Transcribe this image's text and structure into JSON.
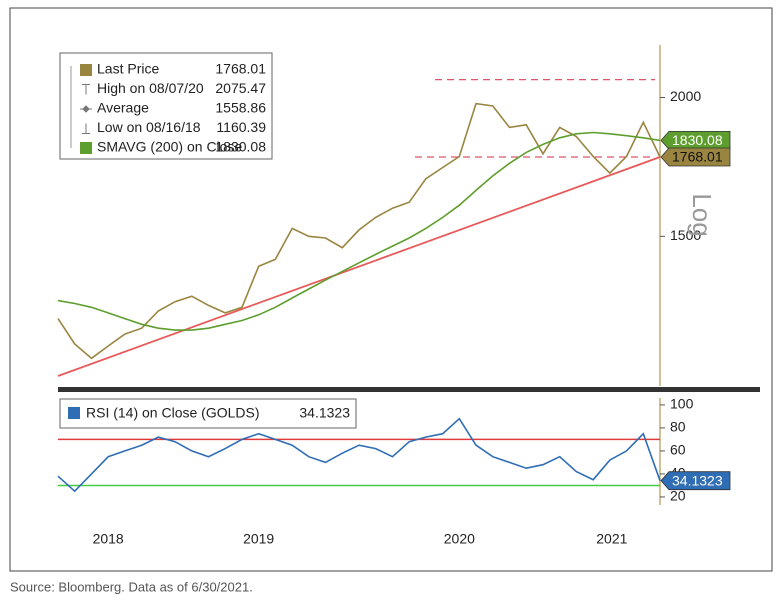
{
  "chart_data": [
    {
      "type": "line",
      "log_scale": true,
      "y_axis_label": "Log",
      "x": [
        2018.5,
        2018.583,
        2018.667,
        2018.75,
        2018.833,
        2018.917,
        2019.0,
        2019.083,
        2019.167,
        2019.25,
        2019.333,
        2019.417,
        2019.5,
        2019.583,
        2019.667,
        2019.75,
        2019.833,
        2019.917,
        2020.0,
        2020.083,
        2020.167,
        2020.25,
        2020.333,
        2020.417,
        2020.5,
        2020.583,
        2020.667,
        2020.75,
        2020.833,
        2020.917,
        2021.0,
        2021.083,
        2021.167,
        2021.25,
        2021.333,
        2021.417,
        2021.5
      ],
      "xlim": [
        2018.5,
        2021.5
      ],
      "ylim": [
        1100,
        2230
      ],
      "yticks": [
        1500,
        2000
      ],
      "series": [
        {
          "name": "Last Price",
          "color": "#9a8540",
          "values": [
            1265,
            1200,
            1165,
            1195,
            1225,
            1240,
            1285,
            1310,
            1325,
            1300,
            1280,
            1295,
            1410,
            1430,
            1525,
            1500,
            1495,
            1465,
            1520,
            1560,
            1590,
            1610,
            1690,
            1730,
            1770,
            1975,
            1965,
            1880,
            1890,
            1780,
            1880,
            1845,
            1770,
            1710,
            1770,
            1900,
            1768.01
          ]
        },
        {
          "name": "SMAVG (200)  on Close",
          "color": "#5e9e2e",
          "values": [
            1313,
            1305,
            1295,
            1280,
            1265,
            1250,
            1240,
            1235,
            1235,
            1240,
            1250,
            1260,
            1275,
            1295,
            1320,
            1345,
            1370,
            1395,
            1420,
            1445,
            1470,
            1495,
            1525,
            1560,
            1600,
            1650,
            1700,
            1745,
            1785,
            1815,
            1840,
            1855,
            1860,
            1855,
            1848,
            1840,
            1830.08
          ]
        }
      ],
      "stats": [
        {
          "label": "High on 08/07/20",
          "value": 2075.47
        },
        {
          "label": "Average",
          "value": 1558.86
        },
        {
          "label": "Low on 08/16/18",
          "value": 1160.39
        }
      ],
      "trend_line": {
        "color": "#e85a5a",
        "x": [
          2018.5,
          2021.5
        ],
        "values": [
          1123,
          1768
        ]
      }
    },
    {
      "type": "line",
      "x": [
        2018.5,
        2018.583,
        2018.667,
        2018.75,
        2018.833,
        2018.917,
        2019.0,
        2019.083,
        2019.167,
        2019.25,
        2019.333,
        2019.417,
        2019.5,
        2019.583,
        2019.667,
        2019.75,
        2019.833,
        2019.917,
        2020.0,
        2020.083,
        2020.167,
        2020.25,
        2020.333,
        2020.417,
        2020.5,
        2020.583,
        2020.667,
        2020.75,
        2020.833,
        2020.917,
        2021.0,
        2021.083,
        2021.167,
        2021.25,
        2021.333,
        2021.417,
        2021.5
      ],
      "xlim": [
        2018.5,
        2021.5
      ],
      "xticks": [
        {
          "value": 2018.75,
          "label": "2018"
        },
        {
          "value": 2019.5,
          "label": "2019"
        },
        {
          "value": 2020.5,
          "label": "2020"
        },
        {
          "value": 2021.26,
          "label": "2021"
        }
      ],
      "ylim": [
        13,
        106
      ],
      "yticks": [
        20,
        40,
        60,
        80,
        100
      ],
      "series": [
        {
          "name": "RSI (14)  on Close (GOLDS)",
          "color": "#2f6db5",
          "values": [
            38,
            25,
            40,
            55,
            60,
            65,
            72,
            68,
            60,
            55,
            62,
            70,
            75,
            70,
            65,
            55,
            50,
            58,
            65,
            62,
            55,
            68,
            72,
            75,
            88,
            65,
            55,
            50,
            45,
            48,
            55,
            42,
            35,
            52,
            60,
            75,
            34.1323
          ]
        }
      ],
      "reference_lines": [
        {
          "value": 70,
          "color": "#e03a3a"
        },
        {
          "value": 30,
          "color": "#44cc44"
        }
      ]
    }
  ],
  "source": "Source: Bloomberg. Data as of 6/30/2021."
}
